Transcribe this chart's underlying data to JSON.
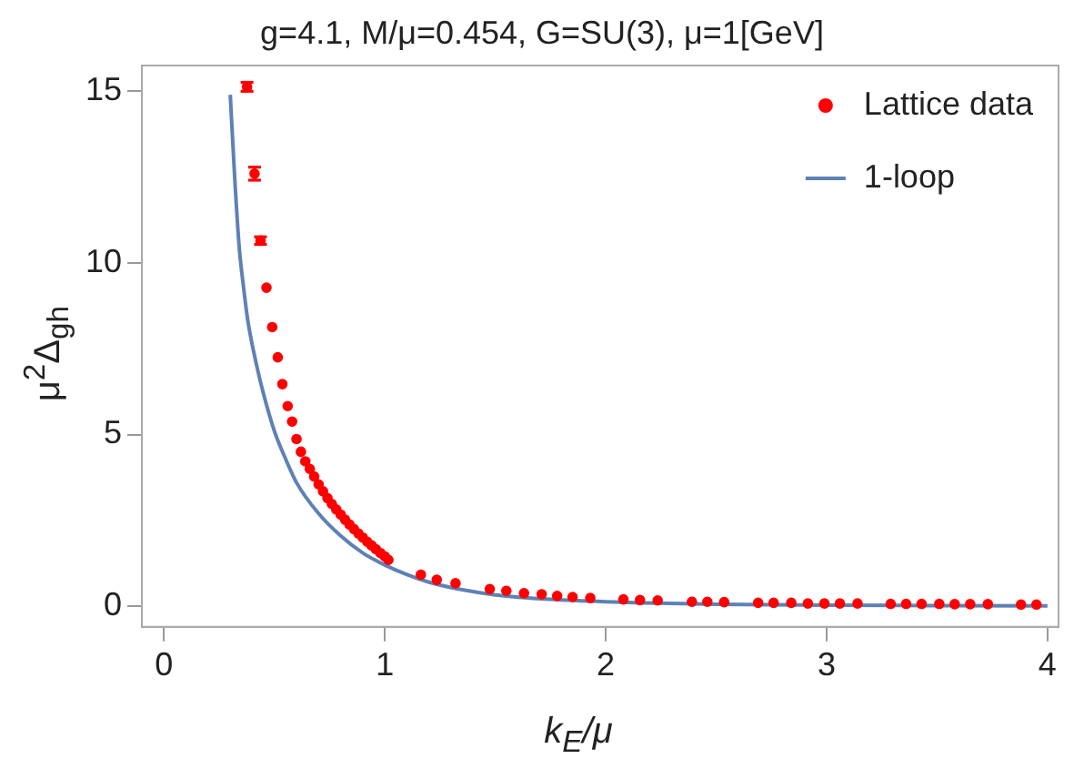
{
  "chart_data": {
    "type": "scatter",
    "title": "g=4.1, M/μ=0.454, G=SU(3), μ=1[GeV]",
    "xlabel": "k$_{E}$/μ",
    "ylabel": "μ$^{2}$Δ$_{gh}$",
    "xlim": [
      -0.1,
      4.05
    ],
    "ylim": [
      -0.6,
      15.75
    ],
    "xticks": [
      0,
      1,
      2,
      3,
      4
    ],
    "yticks": [
      0,
      5,
      10,
      15
    ],
    "grid": false,
    "legend": "top right",
    "series": [
      {
        "name": "Lattice data",
        "type": "scatter",
        "marker": "circle",
        "color": "#ff0000",
        "x": [
          0.376,
          0.41,
          0.437,
          0.464,
          0.49,
          0.515,
          0.536,
          0.56,
          0.58,
          0.6,
          0.62,
          0.64,
          0.66,
          0.68,
          0.7,
          0.72,
          0.74,
          0.76,
          0.78,
          0.8,
          0.82,
          0.84,
          0.86,
          0.88,
          0.9,
          0.92,
          0.94,
          0.96,
          0.98,
          1.0,
          1.016,
          1.163,
          1.235,
          1.32,
          1.475,
          1.55,
          1.63,
          1.71,
          1.78,
          1.85,
          1.93,
          2.08,
          2.155,
          2.235,
          2.39,
          2.46,
          2.536,
          2.69,
          2.76,
          2.84,
          2.915,
          2.99,
          3.06,
          3.14,
          3.29,
          3.36,
          3.43,
          3.51,
          3.58,
          3.65,
          3.73,
          3.88,
          3.95
        ],
        "values": [
          15.13,
          12.6,
          10.65,
          9.28,
          8.13,
          7.25,
          6.47,
          5.83,
          5.38,
          4.87,
          4.5,
          4.22,
          4.0,
          3.78,
          3.55,
          3.35,
          3.15,
          2.98,
          2.82,
          2.67,
          2.52,
          2.38,
          2.25,
          2.12,
          2.0,
          1.88,
          1.77,
          1.66,
          1.55,
          1.45,
          1.35,
          0.92,
          0.77,
          0.67,
          0.5,
          0.45,
          0.38,
          0.35,
          0.3,
          0.27,
          0.24,
          0.2,
          0.18,
          0.17,
          0.13,
          0.13,
          0.12,
          0.1,
          0.1,
          0.1,
          0.08,
          0.08,
          0.08,
          0.08,
          0.07,
          0.07,
          0.07,
          0.07,
          0.06,
          0.06,
          0.06,
          0.05,
          0.05
        ],
        "errors": [
          0.13,
          0.19,
          0.11,
          null,
          null,
          null,
          null,
          null,
          null,
          null,
          null,
          null,
          null,
          null,
          null,
          null,
          null,
          null,
          null,
          null,
          null,
          null,
          null,
          null,
          null,
          null,
          null,
          null,
          null,
          null,
          null,
          null,
          null,
          null,
          null,
          null,
          null,
          null,
          null,
          null,
          null,
          null,
          null,
          null,
          null,
          null,
          null,
          null,
          null,
          null,
          null,
          null,
          null,
          null,
          null,
          null,
          null,
          null,
          null,
          null,
          null,
          null,
          null
        ]
      },
      {
        "name": "1-loop",
        "type": "line",
        "marker": "none",
        "color": "#5e81b5",
        "x": [
          0.3,
          0.32,
          0.34,
          0.36,
          0.38,
          0.42,
          0.45,
          0.5,
          0.55,
          0.6,
          0.7,
          0.8,
          0.9,
          1.0,
          1.1,
          1.2,
          1.35,
          1.5,
          1.75,
          2.0,
          2.5,
          3.0,
          3.5,
          4.0
        ],
        "values": [
          14.9,
          12.5,
          10.5,
          9.3,
          8.3,
          7.0,
          6.2,
          5.1,
          4.3,
          3.6,
          2.7,
          2.05,
          1.55,
          1.2,
          0.92,
          0.7,
          0.48,
          0.33,
          0.2,
          0.13,
          0.06,
          0.03,
          0.02,
          0.01
        ]
      }
    ]
  }
}
